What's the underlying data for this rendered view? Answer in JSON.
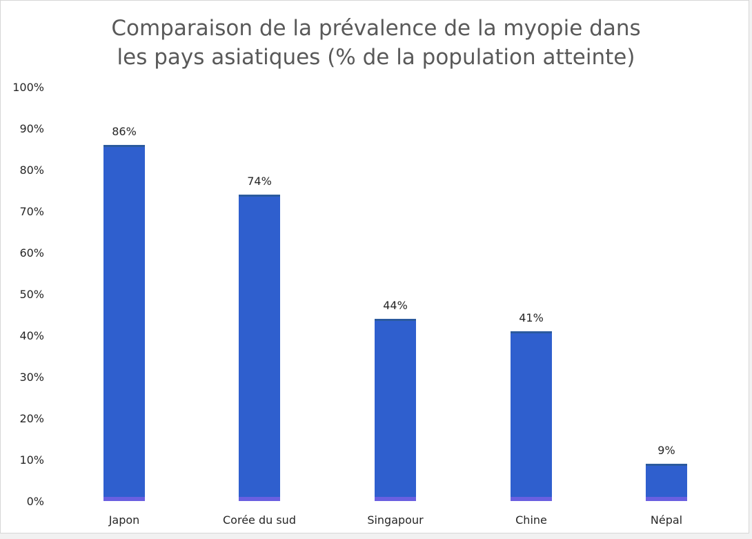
{
  "chart_data": {
    "type": "bar",
    "title_lines": [
      "Comparaison de la prévalence de la myopie dans",
      "les pays asiatiques (% de la population atteinte)"
    ],
    "categories": [
      "Japon",
      "Corée du sud",
      "Singapour",
      "Chine",
      "Népal"
    ],
    "values": [
      86,
      74,
      44,
      41,
      9
    ],
    "data_labels": [
      "86%",
      "74%",
      "44%",
      "41%",
      "9%"
    ],
    "yticks": [
      "0%",
      "10%",
      "20%",
      "30%",
      "40%",
      "50%",
      "60%",
      "70%",
      "80%",
      "90%",
      "100%"
    ],
    "ylim": [
      0,
      100
    ],
    "xlabel": "",
    "ylabel": "",
    "grid": false,
    "legend": "none",
    "colors": {
      "bar_fill": "#2f5fce",
      "bar_top": "#2b5a9e",
      "bar_base": "#6a5fe0"
    }
  }
}
